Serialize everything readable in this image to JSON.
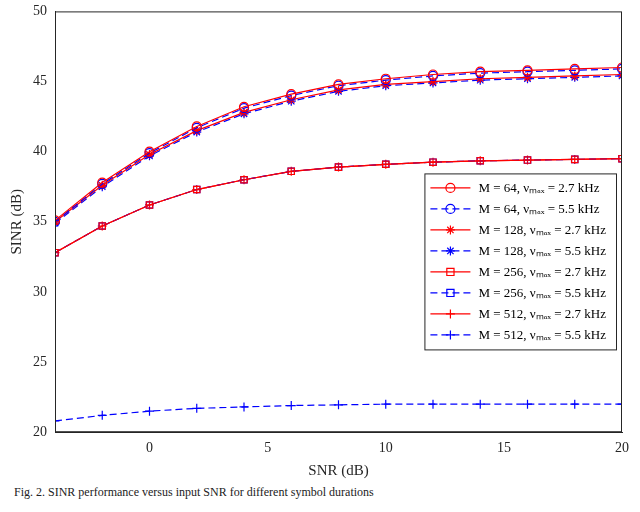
{
  "chart_data": {
    "type": "line",
    "caption": "Fig. 2.  SINR performance versus input SNR for different symbol durations",
    "x_label": "SNR (dB)",
    "y_label": "SINR (dB)",
    "x": [
      -4,
      -2,
      0,
      2,
      4,
      6,
      8,
      10,
      12,
      14,
      16,
      18,
      20
    ],
    "xlim": [
      -4,
      20
    ],
    "xticks": [
      0,
      5,
      10,
      15,
      20
    ],
    "ylim": [
      20,
      50
    ],
    "yticks": [
      20,
      25,
      30,
      35,
      40,
      45,
      50
    ],
    "grid": false,
    "legend": "right",
    "series": [
      {
        "name": "M = 64, νₘₐₓ = 2.7 kHz",
        "color": "#ff0000",
        "marker": "circle",
        "line_style": "solid",
        "values": [
          35.1,
          37.8,
          40.0,
          41.8,
          43.2,
          44.1,
          44.8,
          45.2,
          45.5,
          45.7,
          45.8,
          45.9,
          46.0
        ]
      },
      {
        "name": "M = 64, νₘₐₓ = 5.5 kHz",
        "color": "#0000ff",
        "marker": "circle",
        "line_style": "dashed",
        "values": [
          35.0,
          37.7,
          39.9,
          41.7,
          43.1,
          44.0,
          44.7,
          45.1,
          45.4,
          45.6,
          45.7,
          45.8,
          45.9
        ]
      },
      {
        "name": "M = 128, νₘₐₓ = 2.7 kHz",
        "color": "#ff0000",
        "marker": "star",
        "line_style": "solid",
        "values": [
          35.0,
          37.6,
          39.8,
          41.5,
          42.8,
          43.7,
          44.4,
          44.8,
          45.0,
          45.2,
          45.3,
          45.4,
          45.5
        ]
      },
      {
        "name": "M = 128, νₘₐₓ = 5.5 kHz",
        "color": "#0000ff",
        "marker": "star",
        "line_style": "dashed",
        "values": [
          34.9,
          37.5,
          39.7,
          41.4,
          42.7,
          43.6,
          44.3,
          44.7,
          44.9,
          45.1,
          45.2,
          45.3,
          45.4
        ]
      },
      {
        "name": "M = 256, νₘₐₓ = 2.7 kHz",
        "color": "#ff0000",
        "marker": "square",
        "line_style": "solid",
        "values": [
          32.8,
          34.7,
          36.2,
          37.3,
          38.0,
          38.6,
          38.9,
          39.1,
          39.25,
          39.35,
          39.4,
          39.45,
          39.5
        ]
      },
      {
        "name": "M = 256, νₘₐₓ = 5.5 kHz",
        "color": "#0000ff",
        "marker": "square",
        "line_style": "dashed",
        "values": [
          32.8,
          34.7,
          36.2,
          37.3,
          38.0,
          38.6,
          38.9,
          39.1,
          39.25,
          39.35,
          39.4,
          39.45,
          39.5
        ]
      },
      {
        "name": "M = 512, νₘₐₓ = 2.7 kHz",
        "color": "#ff0000",
        "marker": "plus",
        "line_style": "solid",
        "values": [
          32.8,
          34.7,
          36.2,
          37.3,
          38.0,
          38.6,
          38.9,
          39.1,
          39.25,
          39.35,
          39.4,
          39.45,
          39.5
        ]
      },
      {
        "name": "M = 512, νₘₐₓ = 5.5 kHz",
        "color": "#0000ff",
        "marker": "plus",
        "line_style": "dashed",
        "values": [
          20.8,
          21.2,
          21.5,
          21.7,
          21.8,
          21.9,
          21.95,
          22.0,
          22.0,
          22.0,
          22.0,
          22.0,
          22.0
        ]
      }
    ]
  }
}
